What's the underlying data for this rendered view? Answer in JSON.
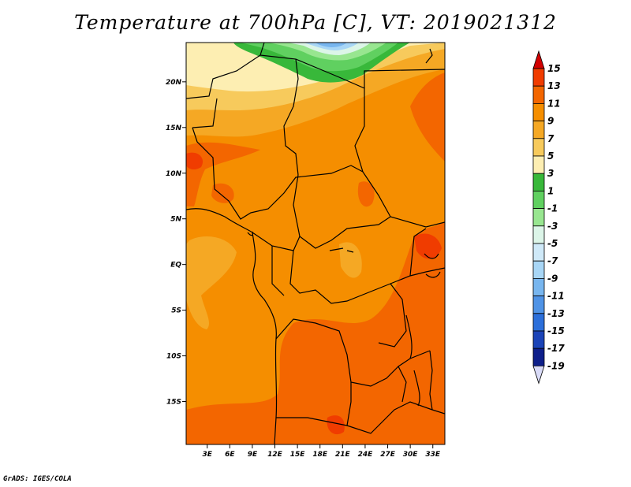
{
  "title": "Temperature at 700hPa [C], VT: 2019021312",
  "credit": "GrADS: IGES/COLA",
  "map": {
    "lat_labels": [
      "20N",
      "15N",
      "10N",
      "5N",
      "EQ",
      "5S",
      "10S",
      "15S"
    ],
    "lat_values": [
      20,
      15,
      10,
      5,
      0,
      -5,
      -10,
      -15
    ],
    "lon_labels": [
      "3E",
      "6E",
      "9E",
      "12E",
      "15E",
      "18E",
      "21E",
      "24E",
      "27E",
      "30E",
      "33E"
    ],
    "lon_values": [
      3,
      6,
      9,
      12,
      15,
      18,
      21,
      24,
      27,
      30,
      33
    ],
    "lat_range": [
      -19.7,
      24.3
    ],
    "lon_range": [
      0.2,
      34.6
    ],
    "field": "Temperature at 700hPa",
    "units": "C"
  },
  "colorbar": {
    "labels": [
      "15",
      "13",
      "11",
      "9",
      "7",
      "5",
      "3",
      "1",
      "-1",
      "-3",
      "-5",
      "-7",
      "-9",
      "-11",
      "-13",
      "-15",
      "-17",
      "-19"
    ],
    "colors": [
      "#d20000",
      "#f03c00",
      "#f36600",
      "#f58e00",
      "#f5a824",
      "#f7ca5c",
      "#fdeeb2",
      "#38b83a",
      "#60d060",
      "#98e690",
      "#dcf5e8",
      "#cfe9f8",
      "#a8d6f6",
      "#78b6ef",
      "#4f93e6",
      "#2c6fda",
      "#1b44b8",
      "#0e1f8a",
      "#000065",
      "#d9dbf8"
    ]
  }
}
